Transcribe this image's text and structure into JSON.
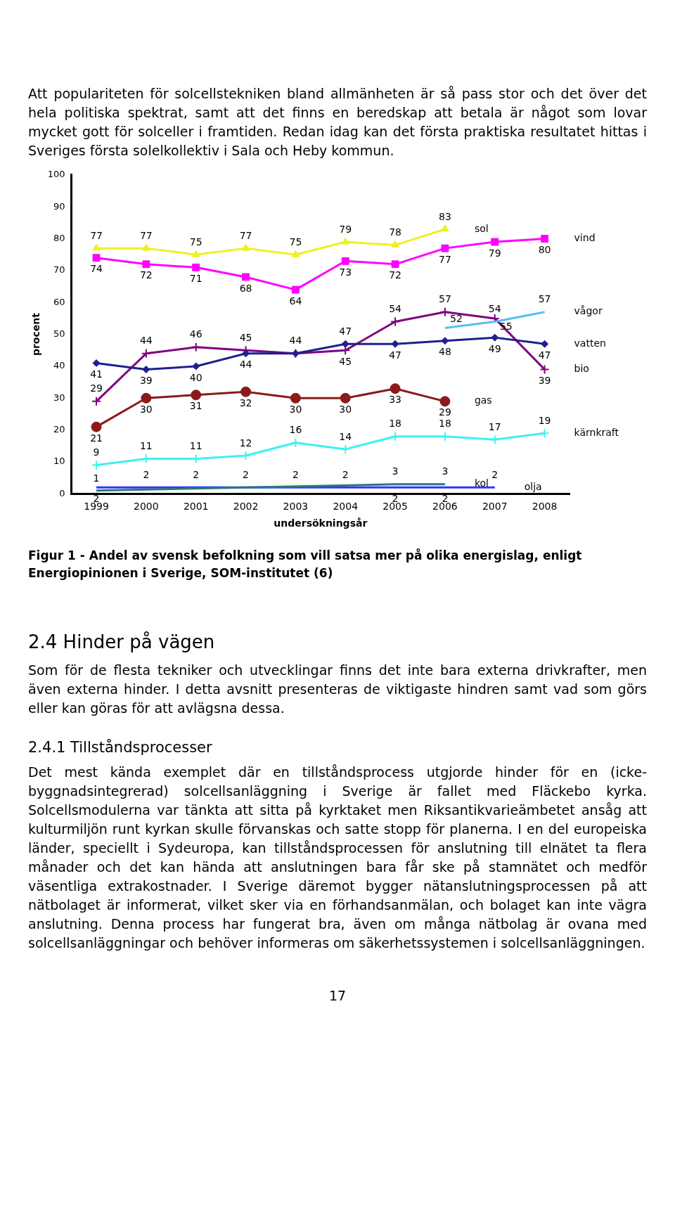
{
  "chart_data": {
    "type": "line",
    "xlabel": "undersökningsår",
    "ylabel": "procent",
    "categories": [
      "1999",
      "2000",
      "2001",
      "2002",
      "2003",
      "2004",
      "2005",
      "2006",
      "2007",
      "2008"
    ],
    "ylim": [
      0,
      100
    ],
    "yticks": [
      0,
      10,
      20,
      30,
      40,
      50,
      60,
      70,
      80,
      90,
      100
    ],
    "grid": false,
    "legend": false,
    "series": [
      {
        "name": "sol",
        "color": "#f0f020",
        "marker": "triangle",
        "values": [
          77,
          77,
          75,
          77,
          75,
          79,
          78,
          83,
          null,
          null
        ],
        "value_labels": [
          "77",
          "77",
          "75",
          "77",
          "75",
          "79",
          "78",
          "83",
          null,
          null
        ]
      },
      {
        "name": "vind",
        "color": "#ff00ff",
        "marker": "square",
        "values": [
          74,
          72,
          71,
          68,
          64,
          73,
          72,
          77,
          79,
          80
        ],
        "value_labels": [
          "74",
          "72",
          "71",
          "68",
          "64",
          "73",
          "72",
          "77",
          "79",
          "80"
        ]
      },
      {
        "name": "vågor",
        "color": "#55c0f0",
        "marker": "none",
        "values": [
          null,
          null,
          null,
          null,
          null,
          null,
          null,
          52,
          54,
          57
        ],
        "value_labels": [
          null,
          null,
          null,
          null,
          null,
          null,
          null,
          "52",
          "54",
          "57"
        ]
      },
      {
        "name": "vatten",
        "color": "#1f1f8f",
        "marker": "diamond",
        "values": [
          41,
          39,
          40,
          44,
          44,
          47,
          47,
          48,
          49,
          47
        ],
        "value_labels": [
          "41",
          "39",
          "40",
          "44",
          null,
          "47",
          "47",
          "48",
          "49",
          "47"
        ]
      },
      {
        "name": "bio",
        "color": "#800080",
        "marker": "cross",
        "values": [
          29,
          44,
          46,
          45,
          44,
          45,
          54,
          57,
          55,
          39
        ],
        "value_labels": [
          "29",
          "44",
          "46",
          "45",
          "44",
          "45",
          "54",
          "57",
          "55",
          "39"
        ]
      },
      {
        "name": "gas",
        "color": "#8b1a1a",
        "marker": "circle",
        "values": [
          21,
          30,
          31,
          32,
          30,
          30,
          33,
          29,
          null,
          null
        ],
        "value_labels": [
          "21",
          "30",
          "31",
          "32",
          "30",
          "30",
          "33",
          "29",
          null,
          null
        ]
      },
      {
        "name": "kärnkraft",
        "color": "#40f0f0",
        "marker": "cross",
        "values": [
          9,
          11,
          11,
          12,
          16,
          14,
          18,
          18,
          17,
          19
        ],
        "value_labels": [
          "9",
          "11",
          "11",
          "12",
          "16",
          "14",
          "18",
          "18",
          "17",
          "19"
        ]
      },
      {
        "name": "kol",
        "color": "#2a7a7a",
        "marker": "none",
        "values": [
          1,
          null,
          null,
          null,
          null,
          null,
          3,
          3,
          null,
          null
        ],
        "value_labels": [
          "1",
          null,
          null,
          null,
          null,
          null,
          "3",
          "3",
          null,
          null
        ]
      },
      {
        "name": "olja",
        "color": "#3333ff",
        "marker": "none",
        "values": [
          2,
          2,
          2,
          2,
          2,
          2,
          2,
          2,
          2,
          null
        ],
        "value_labels": [
          "2",
          "2",
          "2",
          "2",
          "2",
          "2",
          "2",
          "2",
          "2",
          null
        ]
      }
    ],
    "annotations": [
      "Att populariteten för solcellstekniken bland allmänheten är så pass stor och det över det hela politiska spektrat, samt att det finns en beredskap att betala är något som lovar mycket gott för solceller i framtiden. Redan idag kan det första praktiska resultatet hittas i Sveriges första solelkollektiv i Sala och Heby kommun.",
      "Figur 1 - Andel av svensk befolkning som vill satsa mer på olika energislag, enligt Energiopinionen i Sverige, SOM-institutet (6)",
      "2.4 Hinder på vägen",
      "Som för de flesta tekniker och utvecklingar finns det inte bara externa drivkrafter, men även externa hinder. I detta avsnitt presenteras de viktigaste hindren samt vad som görs eller kan göras för att avlägsna dessa.",
      "2.4.1 Tillståndsprocesser",
      "Det mest kända exemplet där en tillståndsprocess utgjorde hinder för en (icke-byggnadsintegrerad) solcellsanläggning i Sverige är fallet med Fläckebo kyrka. Solcellsmodulerna var tänkta att sitta på kyrktaket men Riksantikvarieämbetet ansåg att kulturmiljön runt kyrkan skulle förvanskas och satte stopp för planerna. I en del europeiska länder, speciellt i Sydeuropa, kan tillståndsprocessen för anslutning till elnätet ta flera månader och det kan hända att anslutningen bara får ske på stamnätet och medför väsentliga extrakostnader. I Sverige däremot bygger nätanslutningsprocessen på att nätbolaget är informerat, vilket sker via en förhandsanmälan, och bolaget kan inte vägra anslutning. Denna process har fungerat bra, även om många nätbolag är ovana med solcellsanläggningar och behöver informeras om säkerhetssystemen i solcellsanläggningen.",
      "17"
    ]
  }
}
